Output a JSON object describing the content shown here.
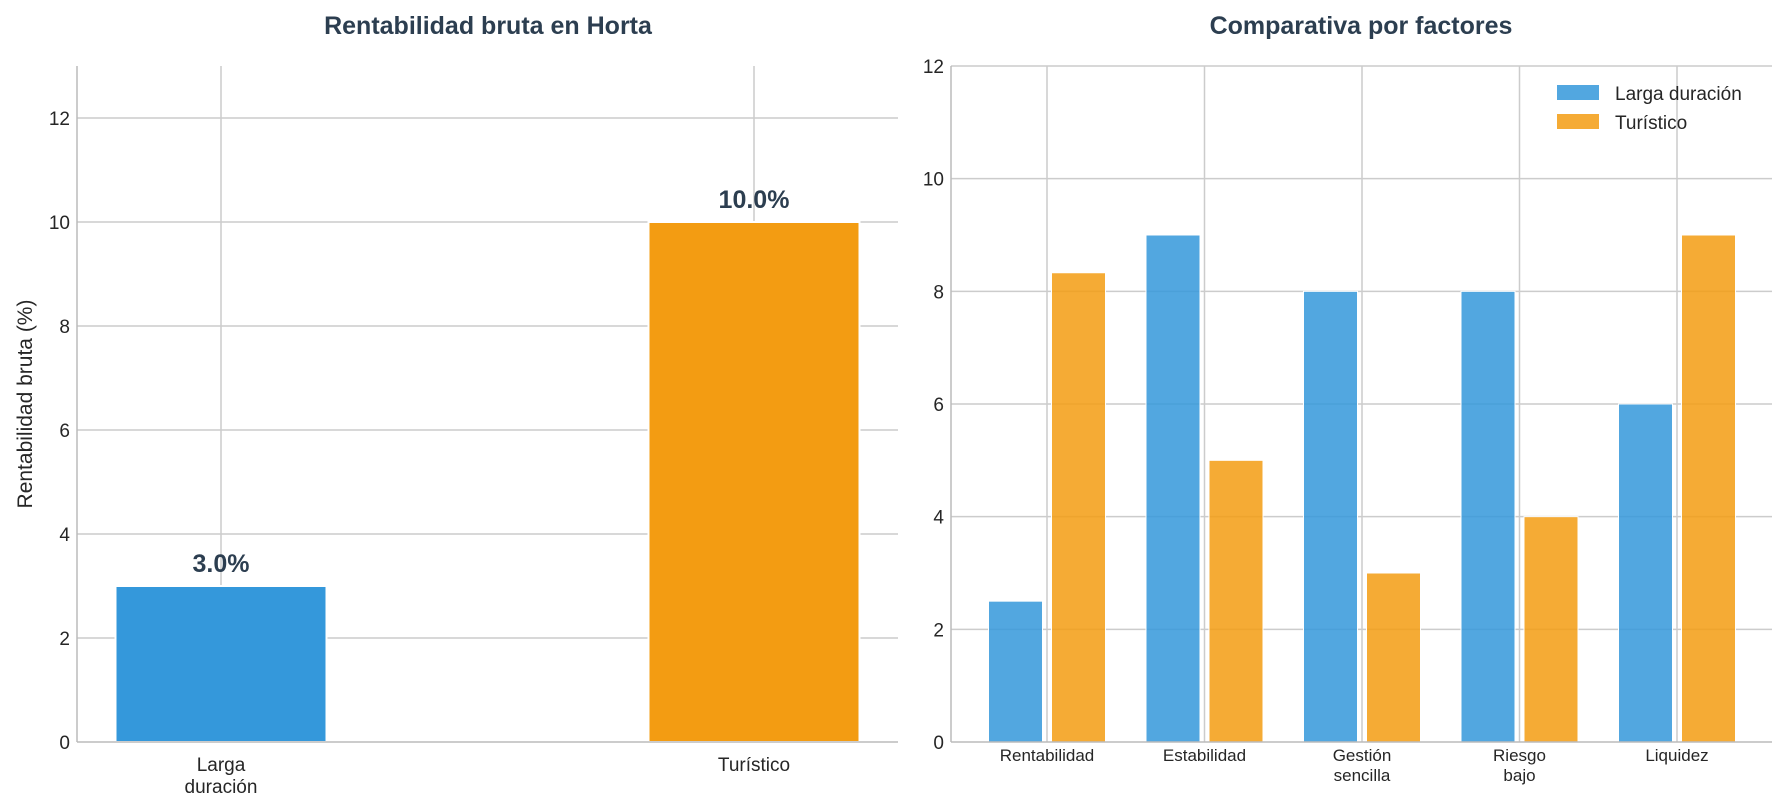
{
  "colors": {
    "larga": "#3498db",
    "turistico": "#f39c12",
    "title": "#2c3e50",
    "grid": "#cccccc"
  },
  "chart_data": [
    {
      "type": "bar",
      "title": "Rentabilidad bruta en Horta",
      "xlabel": "",
      "ylabel": "Rentabilidad bruta (%)",
      "categories": [
        [
          "Larga",
          "duración"
        ],
        [
          "Turístico"
        ]
      ],
      "values": [
        3.0,
        10.0
      ],
      "data_labels": [
        "3.0%",
        "10.0%"
      ],
      "colors": [
        "#3498db",
        "#f39c12"
      ],
      "ylim": [
        0,
        13
      ],
      "yticks": [
        0,
        2,
        4,
        6,
        8,
        10,
        12
      ],
      "grid": true
    },
    {
      "type": "bar",
      "title": "Comparativa por factores",
      "xlabel": "",
      "ylabel": "",
      "categories": [
        [
          "Rentabilidad"
        ],
        [
          "Estabilidad"
        ],
        [
          "Gestión",
          "sencilla"
        ],
        [
          "Riesgo",
          "bajo"
        ],
        [
          "Liquidez"
        ]
      ],
      "series": [
        {
          "name": "Larga duración",
          "values": [
            2.5,
            9,
            8,
            8,
            6
          ],
          "color": "#3498db"
        },
        {
          "name": "Turístico",
          "values": [
            8.33,
            5,
            3,
            4,
            9
          ],
          "color": "#f39c12"
        }
      ],
      "ylim": [
        0,
        12
      ],
      "yticks": [
        0,
        2,
        4,
        6,
        8,
        10,
        12
      ],
      "legend": "top-right",
      "grid": true
    }
  ]
}
